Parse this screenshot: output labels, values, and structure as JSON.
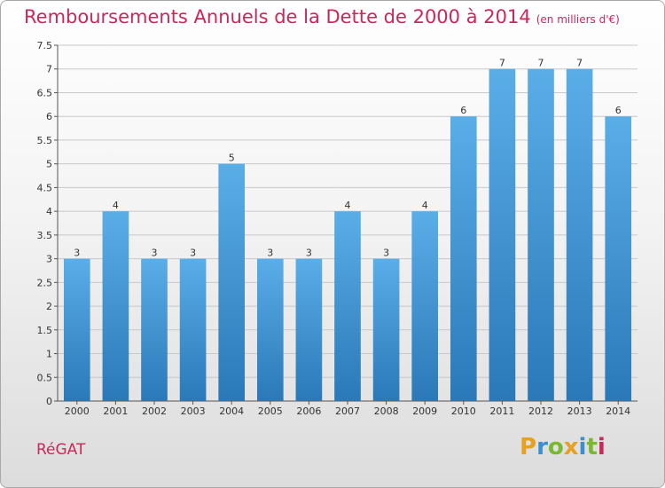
{
  "header": {
    "title": "Remboursements Annuels de la Dette de 2000 à 2014",
    "subtitle": "(en milliers d'€)"
  },
  "footer": {
    "commune": "RéGAT",
    "logo_letters": [
      "P",
      "r",
      "o",
      "x",
      "i",
      "t",
      "i"
    ],
    "logo_colors": [
      "#e8a020",
      "#3a8fd0",
      "#7ab830",
      "#e8a020",
      "#3a8fd0",
      "#7ab830",
      "#c8285a"
    ]
  },
  "chart_data": {
    "type": "bar",
    "categories": [
      "2000",
      "2001",
      "2002",
      "2003",
      "2004",
      "2005",
      "2006",
      "2007",
      "2008",
      "2009",
      "2010",
      "2011",
      "2012",
      "2013",
      "2014"
    ],
    "values": [
      3,
      4,
      3,
      3,
      5,
      3,
      3,
      4,
      3,
      4,
      6,
      7,
      7,
      7,
      6
    ],
    "data_labels": [
      "3",
      "4",
      "3",
      "3",
      "5",
      "3",
      "3",
      "4",
      "3",
      "4",
      "6",
      "7",
      "7",
      "7",
      "6"
    ],
    "ylim": [
      0,
      7.5
    ],
    "yticks": [
      0,
      0.5,
      1,
      1.5,
      2,
      2.5,
      3,
      3.5,
      4,
      4.5,
      5,
      5.5,
      6,
      6.5,
      7,
      7.5
    ],
    "ytick_labels": [
      "0",
      "0.5",
      "1",
      "1.5",
      "2",
      "2.5",
      "3",
      "3.5",
      "4",
      "4.5",
      "5",
      "5.5",
      "6",
      "6.5",
      "7",
      "7.5"
    ],
    "grid": true,
    "bar_color_top": "#5aaee8",
    "bar_color_bottom": "#2a78b8"
  }
}
